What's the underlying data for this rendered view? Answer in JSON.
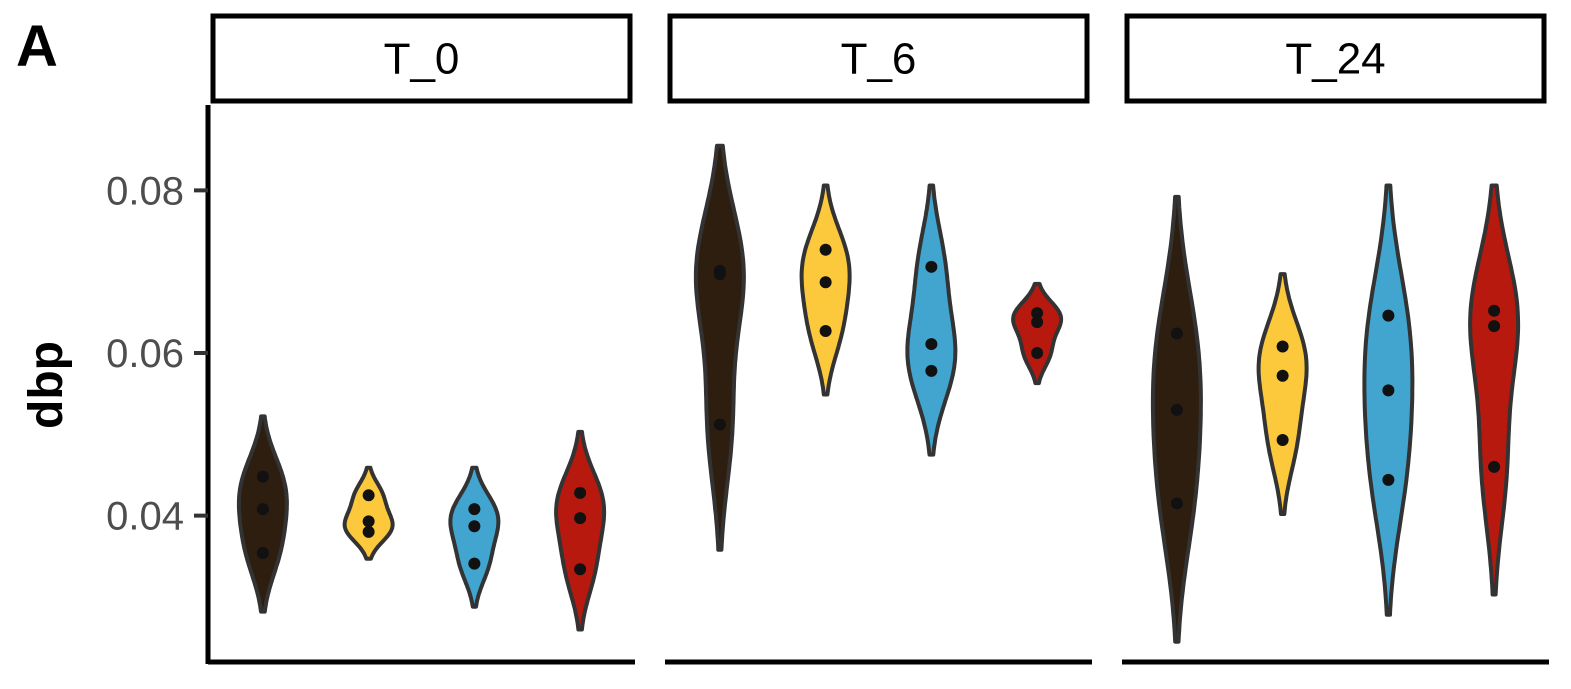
{
  "panel_label": "A",
  "chart_data": {
    "type": "violin",
    "ylabel": "dbp",
    "xlabel": "",
    "ylim": [
      0.022,
      0.0905
    ],
    "yticks": [
      0.04,
      0.06,
      0.08
    ],
    "ytick_labels": [
      "0.04",
      "0.06",
      "0.08"
    ],
    "group_colors": [
      "#2e1e10",
      "#fdc93c",
      "#41a5cf",
      "#b8190f"
    ],
    "outline_color": "#333333",
    "point_color": "#111111",
    "grid": false,
    "legend": "none",
    "facets": [
      {
        "label": "T_0",
        "groups": [
          {
            "points": [
              0.0448,
              0.0408,
              0.0354
            ],
            "range": [
              0.0282,
              0.0522
            ]
          },
          {
            "points": [
              0.0425,
              0.0393,
              0.038
            ],
            "range": [
              0.0347,
              0.0459
            ]
          },
          {
            "points": [
              0.0408,
              0.0387,
              0.0341
            ],
            "range": [
              0.0288,
              0.0459
            ]
          },
          {
            "points": [
              0.0428,
              0.0397,
              0.0334
            ],
            "range": [
              0.026,
              0.0503
            ]
          }
        ]
      },
      {
        "label": "T_6",
        "groups": [
          {
            "points": [
              0.0701,
              0.0697,
              0.0512
            ],
            "range": [
              0.0358,
              0.0855
            ]
          },
          {
            "points": [
              0.0727,
              0.0687,
              0.0627
            ],
            "range": [
              0.0549,
              0.0806
            ]
          },
          {
            "points": [
              0.0706,
              0.0611,
              0.0578
            ],
            "range": [
              0.0475,
              0.0806
            ]
          },
          {
            "points": [
              0.0649,
              0.0638,
              0.06
            ],
            "range": [
              0.0563,
              0.0685
            ]
          }
        ]
      },
      {
        "label": "T_24",
        "groups": [
          {
            "points": [
              0.0624,
              0.053,
              0.0415
            ],
            "range": [
              0.0245,
              0.0792
            ]
          },
          {
            "points": [
              0.0608,
              0.0572,
              0.0493
            ],
            "range": [
              0.0402,
              0.0697
            ]
          },
          {
            "points": [
              0.0646,
              0.0554,
              0.0444
            ],
            "range": [
              0.0278,
              0.0806
            ]
          },
          {
            "points": [
              0.0652,
              0.0633,
              0.046
            ],
            "range": [
              0.0303,
              0.0806
            ]
          }
        ]
      }
    ]
  }
}
